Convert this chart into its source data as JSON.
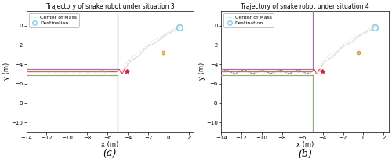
{
  "title_left": "Trajectory of snake robot under situation 3",
  "title_right": "Trajectory of snake robot under situation 4",
  "xlabel": "x (m)",
  "ylabel": "y (m)",
  "xlim": [
    -14,
    2.5
  ],
  "ylim": [
    -11,
    1.5
  ],
  "xticks": [
    -14,
    -12,
    -10,
    -8,
    -6,
    -4,
    -2,
    0,
    2
  ],
  "yticks": [
    -10,
    -8,
    -6,
    -4,
    -2,
    0
  ],
  "label_a": "(a)",
  "label_b": "(b)",
  "legend_center_of_mass": "Center of Mass",
  "legend_destination": "Destination",
  "purple_color": "#9b72b0",
  "green_color": "#8db06e",
  "dest_color": "#87CEEB",
  "background_color": "#ffffff",
  "transition_x": -5.0,
  "pipe_top_y": -4.5,
  "pipe_bottom_y": -5.1,
  "traj_y": -4.75,
  "destination_x": 1.1,
  "destination_y": -0.2,
  "marker_red_x": -4.05,
  "marker_red_y": -4.75,
  "marker_orange_x": -0.5,
  "marker_orange_y": -2.8
}
